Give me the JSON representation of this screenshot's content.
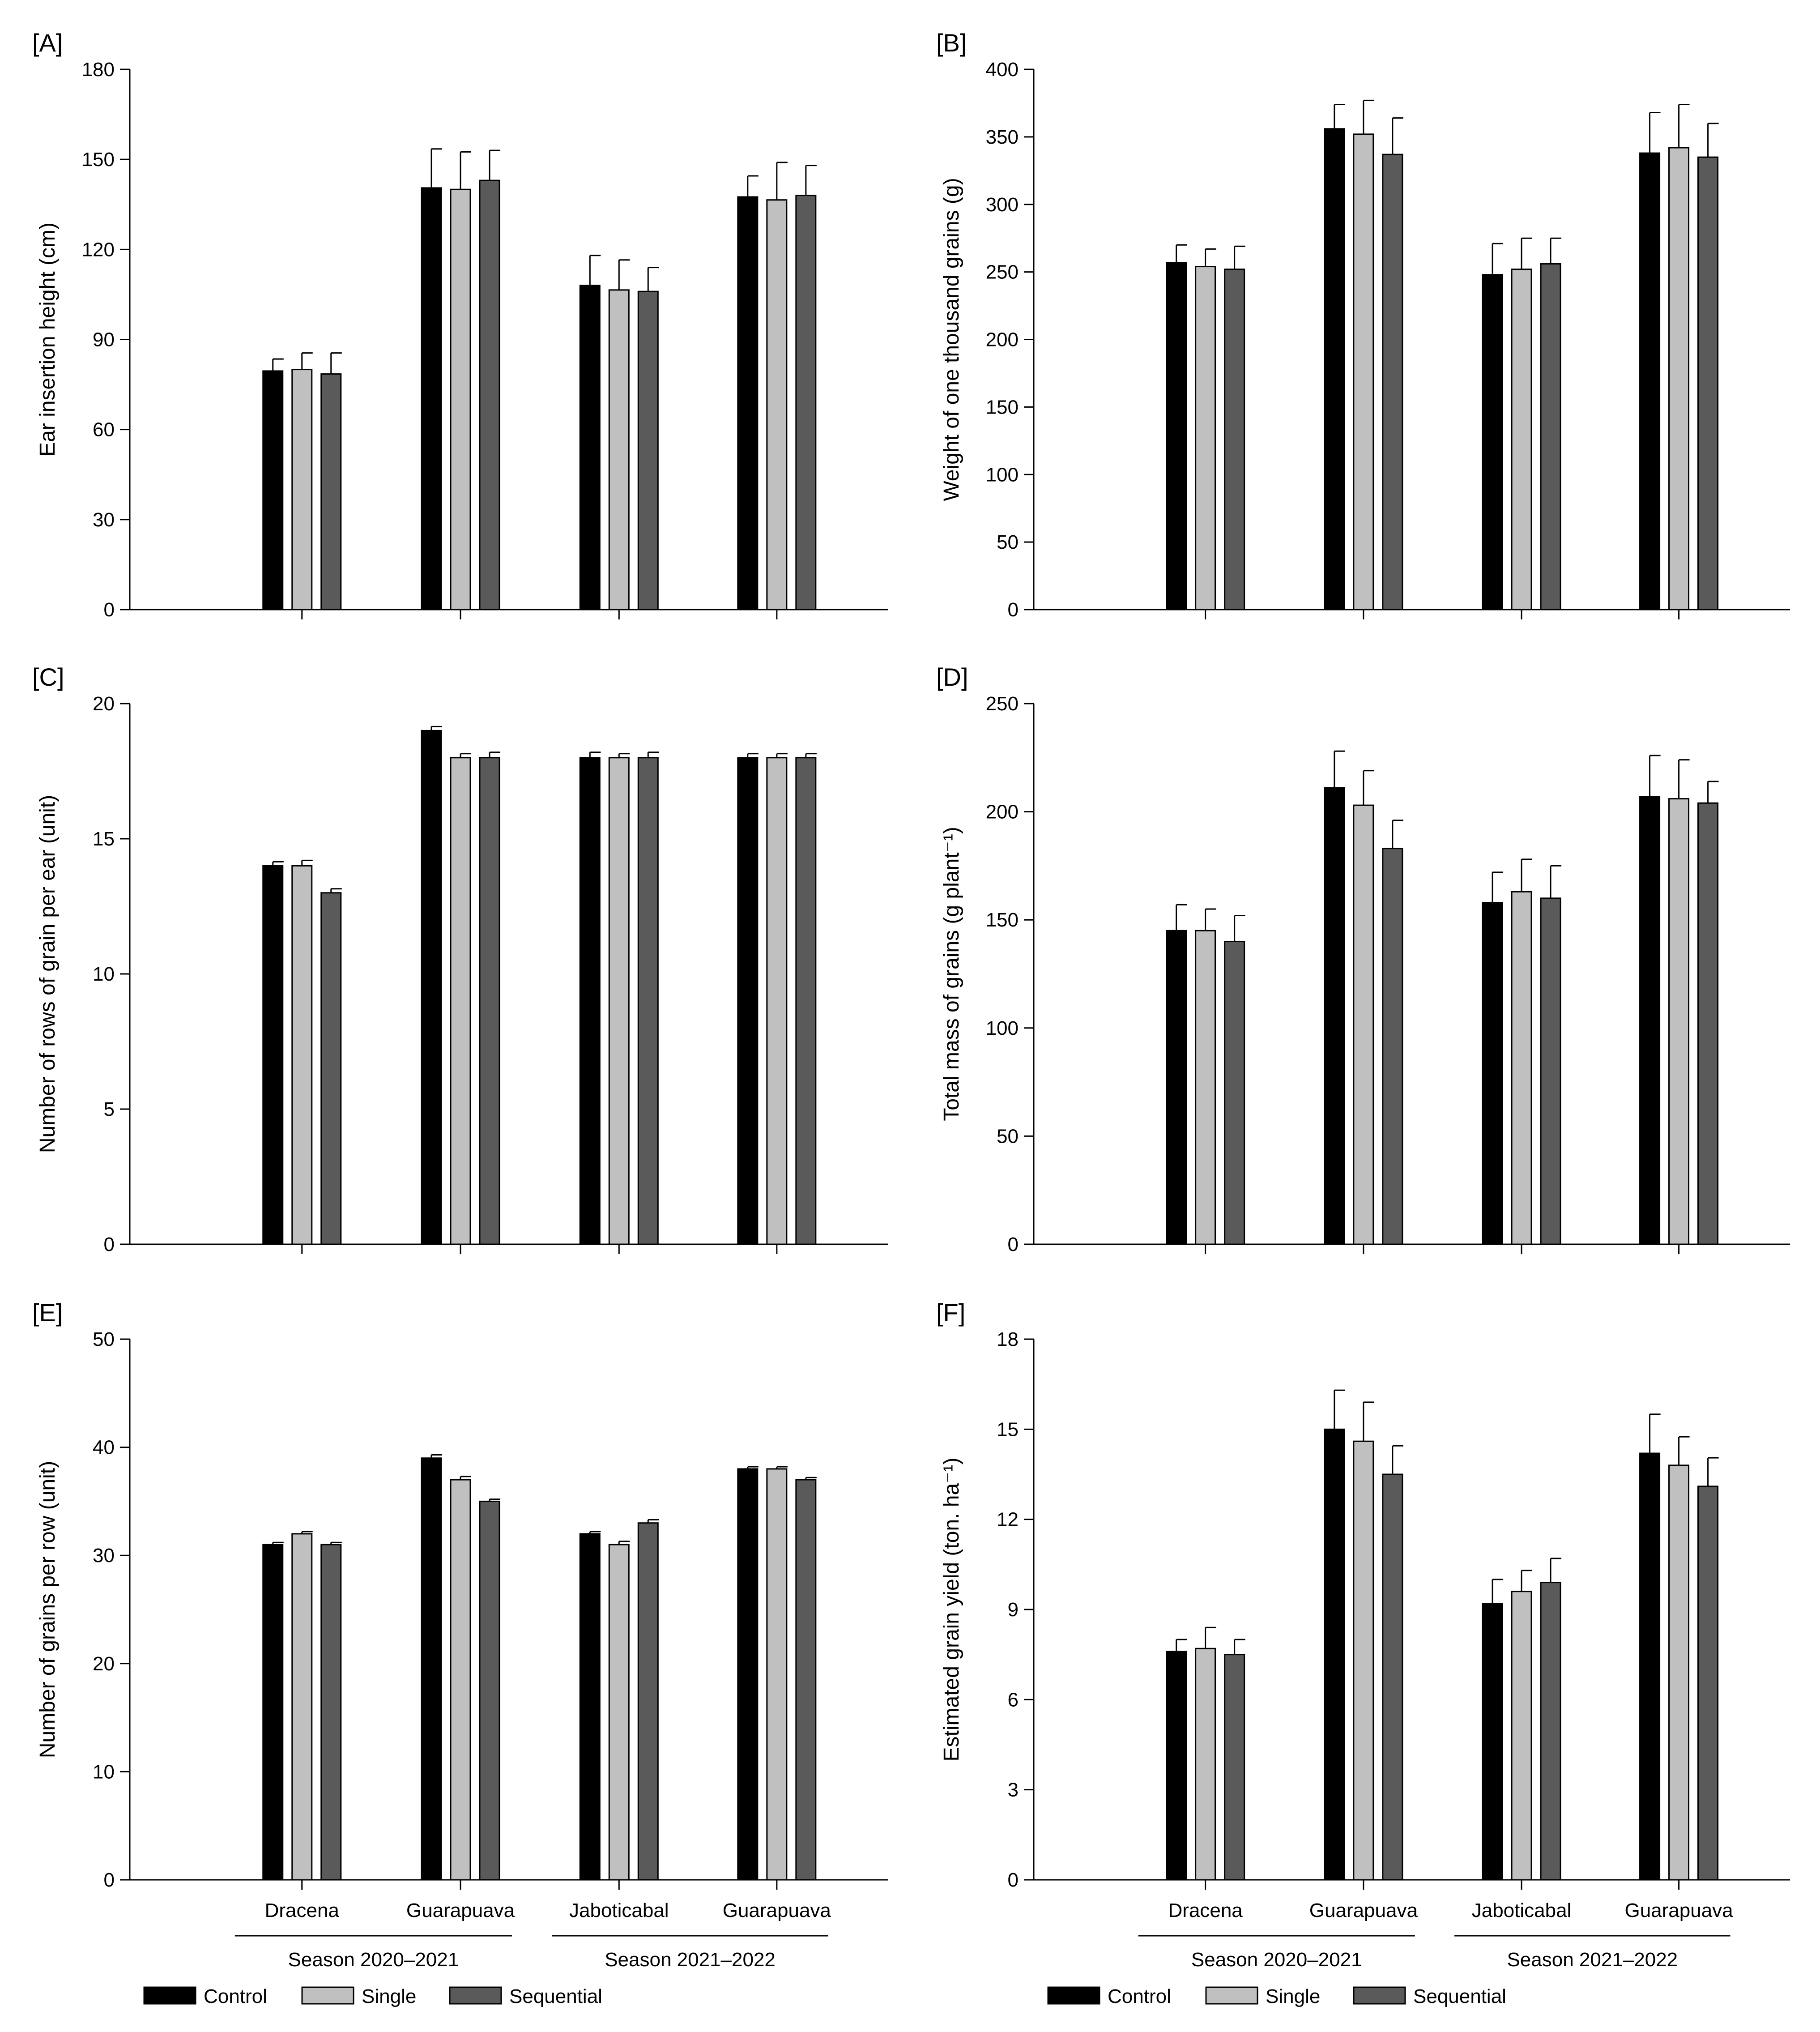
{
  "figure": {
    "legend": {
      "items": [
        {
          "label": "Control",
          "color": "#000000"
        },
        {
          "label": "Single",
          "color": "#c0c0c0"
        },
        {
          "label": "Sequential",
          "color": "#5a5a5a"
        }
      ]
    },
    "x_groups": {
      "locations": [
        "Dracena",
        "Guarapuava",
        "Jaboticabal",
        "Guarapuava"
      ],
      "seasons": [
        "Season 2020–2021",
        "Season 2021–2022"
      ]
    }
  },
  "chart_data": [
    {
      "panel": "[A]",
      "type": "bar",
      "ylabel": "Ear insertion height (cm)",
      "ylim": [
        0,
        180
      ],
      "yticks": [
        0,
        30,
        60,
        90,
        120,
        150,
        180
      ],
      "categories": [
        "Dracena",
        "Guarapuava",
        "Jaboticabal",
        "Guarapuava"
      ],
      "series": [
        {
          "name": "Control",
          "values": [
            79.5,
            140.5,
            108,
            137.5
          ],
          "errors": [
            4,
            13,
            10,
            7
          ]
        },
        {
          "name": "Single",
          "values": [
            80,
            140,
            106.5,
            136.5
          ],
          "errors": [
            5.5,
            12.5,
            10,
            12.5
          ]
        },
        {
          "name": "Sequential",
          "values": [
            78.5,
            143,
            106,
            138
          ],
          "errors": [
            7,
            10,
            8,
            10
          ]
        }
      ]
    },
    {
      "panel": "[B]",
      "type": "bar",
      "ylabel": "Weight of one thousand  grains (g)",
      "ylim": [
        0,
        400
      ],
      "yticks": [
        0,
        50,
        100,
        150,
        200,
        250,
        300,
        350,
        400
      ],
      "categories": [
        "Dracena",
        "Guarapuava",
        "Jaboticabal",
        "Guarapuava"
      ],
      "series": [
        {
          "name": "Control",
          "values": [
            257,
            356,
            248,
            338
          ],
          "errors": [
            13,
            18,
            23,
            30
          ]
        },
        {
          "name": "Single",
          "values": [
            254,
            352,
            252,
            342
          ],
          "errors": [
            13,
            25,
            23,
            32
          ]
        },
        {
          "name": "Sequential",
          "values": [
            252,
            337,
            256,
            335
          ],
          "errors": [
            17,
            27,
            19,
            25
          ]
        }
      ]
    },
    {
      "panel": "[C]",
      "type": "bar",
      "ylabel": "Number of rows of grain per ear (unit)",
      "ylim": [
        0,
        20
      ],
      "yticks": [
        0,
        5,
        10,
        15,
        20
      ],
      "categories": [
        "Dracena",
        "Guarapuava",
        "Jaboticabal",
        "Guarapuava"
      ],
      "series": [
        {
          "name": "Control",
          "values": [
            14,
            19,
            18,
            18
          ],
          "errors": [
            0.15,
            0.15,
            0.2,
            0.15
          ]
        },
        {
          "name": "Single",
          "values": [
            14,
            18,
            18,
            18
          ],
          "errors": [
            0.2,
            0.15,
            0.15,
            0.15
          ]
        },
        {
          "name": "Sequential",
          "values": [
            13,
            18,
            18,
            18
          ],
          "errors": [
            0.15,
            0.2,
            0.2,
            0.15
          ]
        }
      ]
    },
    {
      "panel": "[D]",
      "type": "bar",
      "ylabel": "Total mass of grains (g plant⁻¹)",
      "ylim": [
        0,
        250
      ],
      "yticks": [
        0,
        50,
        100,
        150,
        200,
        250
      ],
      "categories": [
        "Dracena",
        "Guarapuava",
        "Jaboticabal",
        "Guarapuava"
      ],
      "series": [
        {
          "name": "Control",
          "values": [
            145,
            211,
            158,
            207
          ],
          "errors": [
            12,
            17,
            14,
            19
          ]
        },
        {
          "name": "Single",
          "values": [
            145,
            203,
            163,
            206
          ],
          "errors": [
            10,
            16,
            15,
            18
          ]
        },
        {
          "name": "Sequential",
          "values": [
            140,
            183,
            160,
            204
          ],
          "errors": [
            12,
            13,
            15,
            10
          ]
        }
      ]
    },
    {
      "panel": "[E]",
      "type": "bar",
      "ylabel": "Number of grains per row (unit)",
      "ylim": [
        0,
        50
      ],
      "yticks": [
        0,
        10,
        20,
        30,
        40,
        50
      ],
      "categories": [
        "Dracena",
        "Guarapuava",
        "Jaboticabal",
        "Guarapuava"
      ],
      "series": [
        {
          "name": "Control",
          "values": [
            31,
            39,
            32,
            38
          ],
          "errors": [
            0.2,
            0.3,
            0.2,
            0.2
          ]
        },
        {
          "name": "Single",
          "values": [
            32,
            37,
            31,
            38
          ],
          "errors": [
            0.2,
            0.3,
            0.3,
            0.2
          ]
        },
        {
          "name": "Sequential",
          "values": [
            31,
            35,
            33,
            37
          ],
          "errors": [
            0.2,
            0.2,
            0.3,
            0.2
          ]
        }
      ]
    },
    {
      "panel": "[F]",
      "type": "bar",
      "ylabel": "Estimated grain yield (ton. ha⁻¹)",
      "ylim": [
        0,
        18
      ],
      "yticks": [
        0,
        3,
        6,
        9,
        12,
        15,
        18
      ],
      "categories": [
        "Dracena",
        "Guarapuava",
        "Jaboticabal",
        "Guarapuava"
      ],
      "series": [
        {
          "name": "Control",
          "values": [
            7.6,
            15.0,
            9.2,
            14.2
          ],
          "errors": [
            0.4,
            1.3,
            0.8,
            1.3
          ]
        },
        {
          "name": "Single",
          "values": [
            7.7,
            14.6,
            9.6,
            13.8
          ],
          "errors": [
            0.7,
            1.3,
            0.7,
            0.95
          ]
        },
        {
          "name": "Sequential",
          "values": [
            7.5,
            13.5,
            9.9,
            13.1
          ],
          "errors": [
            0.5,
            0.95,
            0.8,
            0.95
          ]
        }
      ]
    }
  ]
}
